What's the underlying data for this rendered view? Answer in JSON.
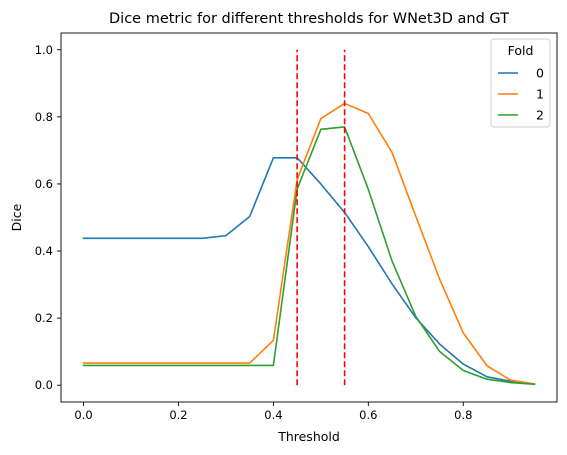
{
  "chart_data": {
    "type": "line",
    "title": "Dice metric for different thresholds for WNet3D and GT",
    "xlabel": "Threshold",
    "ylabel": "Dice",
    "xlim": [
      -0.0475,
      0.9975
    ],
    "ylim": [
      -0.05,
      1.05
    ],
    "xticks": [
      0.0,
      0.2,
      0.4,
      0.6,
      0.8
    ],
    "xtick_labels": [
      "0.0",
      "0.2",
      "0.4",
      "0.6",
      "0.8"
    ],
    "yticks": [
      0.0,
      0.2,
      0.4,
      0.6,
      0.8,
      1.0
    ],
    "ytick_labels": [
      "0.0",
      "0.2",
      "0.4",
      "0.6",
      "0.8",
      "1.0"
    ],
    "grid": false,
    "legend": {
      "title": "Fold",
      "placement": "top-right"
    },
    "x": [
      0.0,
      0.05,
      0.1,
      0.15,
      0.2,
      0.25,
      0.3,
      0.35,
      0.4,
      0.45,
      0.5,
      0.55,
      0.6,
      0.65,
      0.7,
      0.75,
      0.8,
      0.85,
      0.9,
      0.95
    ],
    "series": [
      {
        "name": "0",
        "color": "#1f77b4",
        "values": [
          0.438,
          0.438,
          0.438,
          0.438,
          0.438,
          0.438,
          0.446,
          0.503,
          0.678,
          0.678,
          0.6,
          0.515,
          0.413,
          0.302,
          0.201,
          0.123,
          0.063,
          0.025,
          0.012,
          0.003
        ]
      },
      {
        "name": "1",
        "color": "#ff7f0e",
        "values": [
          0.066,
          0.066,
          0.066,
          0.066,
          0.066,
          0.066,
          0.066,
          0.066,
          0.134,
          0.613,
          0.795,
          0.84,
          0.81,
          0.694,
          0.504,
          0.317,
          0.156,
          0.058,
          0.015,
          0.004
        ]
      },
      {
        "name": "2",
        "color": "#2ca02c",
        "values": [
          0.059,
          0.059,
          0.059,
          0.059,
          0.059,
          0.059,
          0.059,
          0.059,
          0.059,
          0.585,
          0.763,
          0.77,
          0.584,
          0.37,
          0.205,
          0.101,
          0.044,
          0.018,
          0.008,
          0.003
        ]
      }
    ],
    "vlines": [
      {
        "x": 0.45,
        "ymin": 0.0,
        "ymax": 1.0,
        "color": "#ff0000",
        "style": "dashed"
      },
      {
        "x": 0.55,
        "ymin": 0.0,
        "ymax": 1.0,
        "color": "#ff0000",
        "style": "dashed"
      }
    ]
  }
}
